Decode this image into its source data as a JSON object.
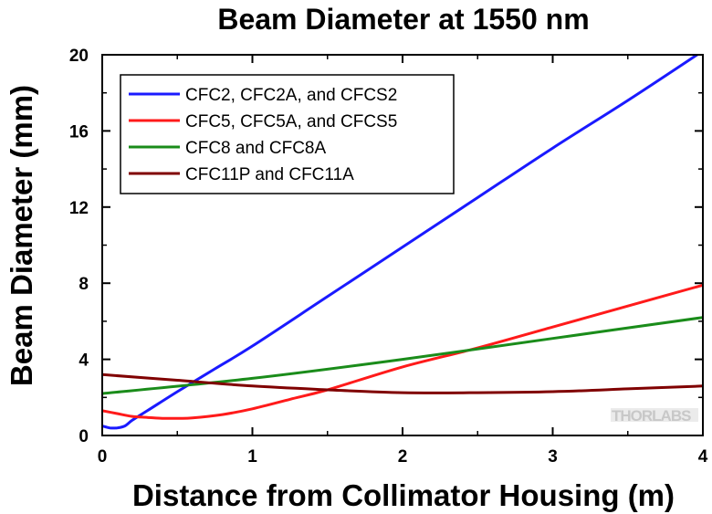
{
  "chart_data": {
    "type": "line",
    "title": "Beam Diameter at 1550 nm",
    "xlabel": "Distance from Collimator Housing (m)",
    "ylabel": "Beam Diameter (mm)",
    "xlim": [
      0,
      4
    ],
    "ylim": [
      0,
      20
    ],
    "xticks": [
      0,
      1,
      2,
      3,
      4
    ],
    "yticks": [
      0,
      4,
      8,
      12,
      16,
      20
    ],
    "grid": false,
    "legend_position": "top-left",
    "watermark": "THORLABS",
    "series": [
      {
        "name": "CFC2, CFC2A, and CFCS2",
        "color": "#1a1aff",
        "x": [
          0,
          0.05,
          0.1,
          0.15,
          0.2,
          0.3,
          0.5,
          0.75,
          1.0,
          1.5,
          2.0,
          2.5,
          3.0,
          3.5,
          4.0
        ],
        "y": [
          0.5,
          0.4,
          0.4,
          0.5,
          0.8,
          1.3,
          2.3,
          3.5,
          4.7,
          7.3,
          9.9,
          12.5,
          15.1,
          17.6,
          20.2
        ]
      },
      {
        "name": "CFC5, CFC5A, and CFCS5",
        "color": "#ff1a1a",
        "x": [
          0,
          0.1,
          0.2,
          0.3,
          0.4,
          0.5,
          0.6,
          0.8,
          1.0,
          1.25,
          1.5,
          2.0,
          2.5,
          3.0,
          3.5,
          4.0
        ],
        "y": [
          1.3,
          1.15,
          1.0,
          0.95,
          0.9,
          0.9,
          0.92,
          1.1,
          1.4,
          1.9,
          2.4,
          3.6,
          4.6,
          5.7,
          6.8,
          7.9
        ]
      },
      {
        "name": "CFC8 and CFC8A",
        "color": "#1a8c1a",
        "x": [
          0,
          1,
          2,
          3,
          4
        ],
        "y": [
          2.2,
          3.0,
          4.0,
          5.1,
          6.2
        ]
      },
      {
        "name": "CFC11P and CFC11A",
        "color": "#800000",
        "x": [
          0,
          0.5,
          1.0,
          1.5,
          2.0,
          2.5,
          3.0,
          3.5,
          4.0
        ],
        "y": [
          3.2,
          2.9,
          2.6,
          2.4,
          2.25,
          2.25,
          2.3,
          2.45,
          2.6
        ]
      }
    ]
  }
}
